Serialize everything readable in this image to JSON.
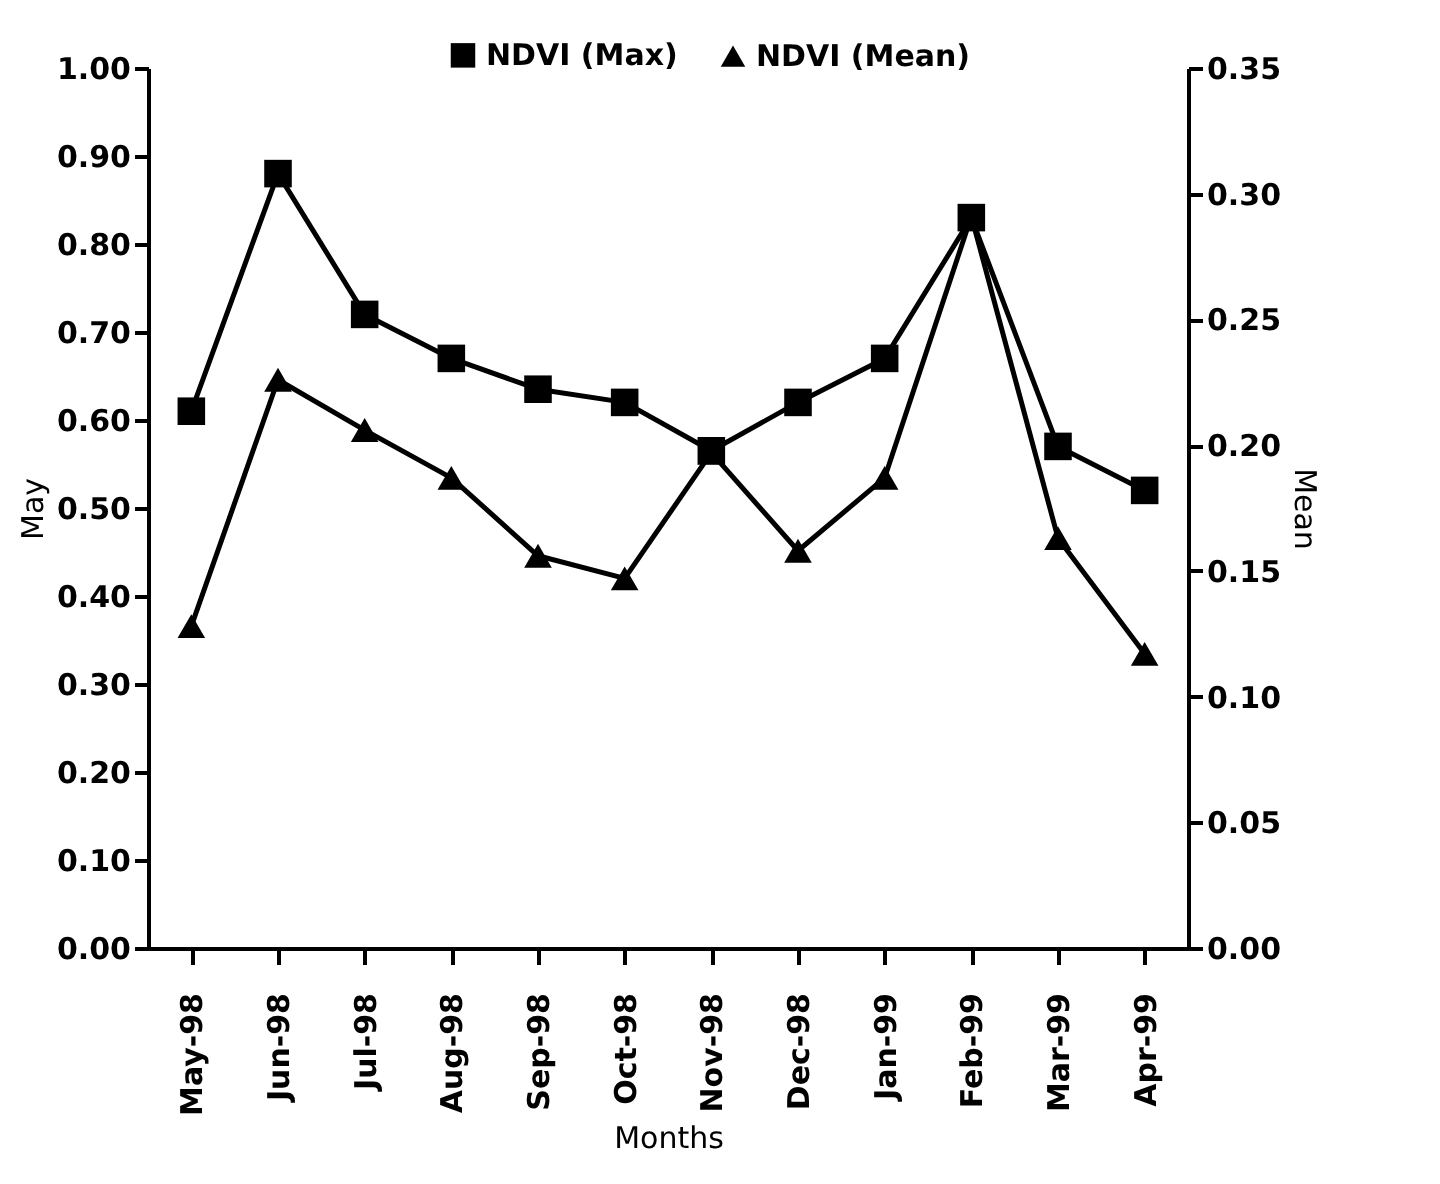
{
  "chart_data": {
    "type": "line",
    "xlabel": "Months",
    "ylabel": "May",
    "y2label": "Mean",
    "categories": [
      "May-98",
      "Jun-98",
      "Jul-98",
      "Aug-98",
      "Sep-98",
      "Oct-98",
      "Nov-98",
      "Dec-98",
      "Jan-99",
      "Feb-99",
      "Mar-99",
      "Apr-99"
    ],
    "series": [
      {
        "name": "NDVI (Max)",
        "color": "#000000",
        "marker": "square",
        "values": [
          0.61,
          0.88,
          0.72,
          0.67,
          0.635,
          0.62,
          0.565,
          0.62,
          0.67,
          0.83,
          0.57,
          0.52
        ]
      },
      {
        "name": "NDVI (Mean)",
        "color": "#000000",
        "marker": "triangle",
        "axis": "y2",
        "values": [
          0.128,
          0.226,
          0.206,
          0.187,
          0.156,
          0.147,
          0.197,
          0.158,
          0.187,
          0.291,
          0.163,
          0.117
        ]
      }
    ],
    "ylim": [
      0,
      1
    ],
    "yticks": [
      {
        "value": 0,
        "label": "0.00"
      },
      {
        "value": 0.1,
        "label": "0.10"
      },
      {
        "value": 0.2,
        "label": "0.20"
      },
      {
        "value": 0.3,
        "label": "0.30"
      },
      {
        "value": 0.4,
        "label": "0.40"
      },
      {
        "value": 0.5,
        "label": "0.50"
      },
      {
        "value": 0.6,
        "label": "0.60"
      },
      {
        "value": 0.7,
        "label": "0.70"
      },
      {
        "value": 0.8,
        "label": "0.80"
      },
      {
        "value": 0.9,
        "label": "0.90"
      },
      {
        "value": 1,
        "label": "1.00"
      }
    ],
    "y2lim": [
      0,
      0.35
    ],
    "y2ticks": [
      {
        "value": 0,
        "label": "0.00"
      },
      {
        "value": 0.05,
        "label": "0.05"
      },
      {
        "value": 0.1,
        "label": "0.10"
      },
      {
        "value": 0.15,
        "label": "0.15"
      },
      {
        "value": 0.2,
        "label": "0.20"
      },
      {
        "value": 0.25,
        "label": "0.25"
      },
      {
        "value": 0.3,
        "label": "0.30"
      },
      {
        "value": 0.35,
        "label": "0.35"
      }
    ],
    "legend": "top",
    "grid": false,
    "line_style": "solid"
  }
}
